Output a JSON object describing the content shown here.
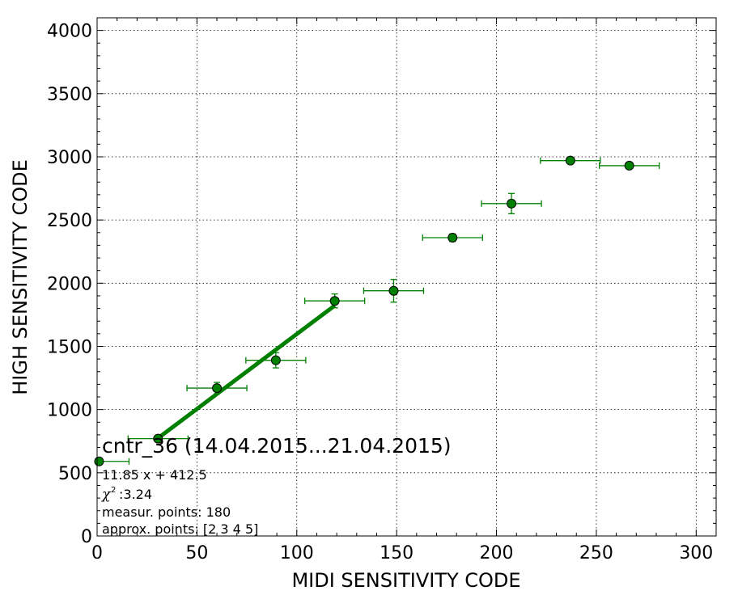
{
  "chart_data": {
    "type": "scatter",
    "title": "cntr_36 (14.04.2015...21.04.2015)",
    "xlabel": "MIDI SENSITIVITY CODE",
    "ylabel": "HIGH SENSITIVITY CODE",
    "xlim": [
      0,
      310
    ],
    "ylim": [
      0,
      4100
    ],
    "xticks": [
      0,
      50,
      100,
      150,
      200,
      250,
      300
    ],
    "yticks": [
      0,
      500,
      1000,
      1500,
      2000,
      2500,
      3000,
      3500,
      4000
    ],
    "grid": true,
    "series": [
      {
        "x": [
          1,
          30.5,
          60,
          89.5,
          119,
          148.5,
          178,
          207.5,
          237,
          266.5
        ],
        "y": [
          590,
          770,
          1170,
          1390,
          1860,
          1940,
          2360,
          2630,
          2970,
          2930
        ],
        "xerr": [
          15,
          15,
          15,
          15,
          15,
          15,
          15,
          15,
          15,
          15
        ],
        "yerr": [
          0,
          20,
          45,
          60,
          55,
          90,
          30,
          80,
          25,
          25
        ]
      }
    ],
    "fit_line": {
      "x": [
        30.5,
        119
      ],
      "y": [
        774,
        1823
      ]
    },
    "colors": {
      "points": "#008000",
      "errorbars": "#008000",
      "fit": "#008000"
    },
    "annotations": {
      "equation": "11.85 x + 412.5",
      "chi2": ":3.24",
      "measur_points": "measur. points: 180",
      "approx_points": "approx. points: [2 3 4 5]"
    }
  }
}
